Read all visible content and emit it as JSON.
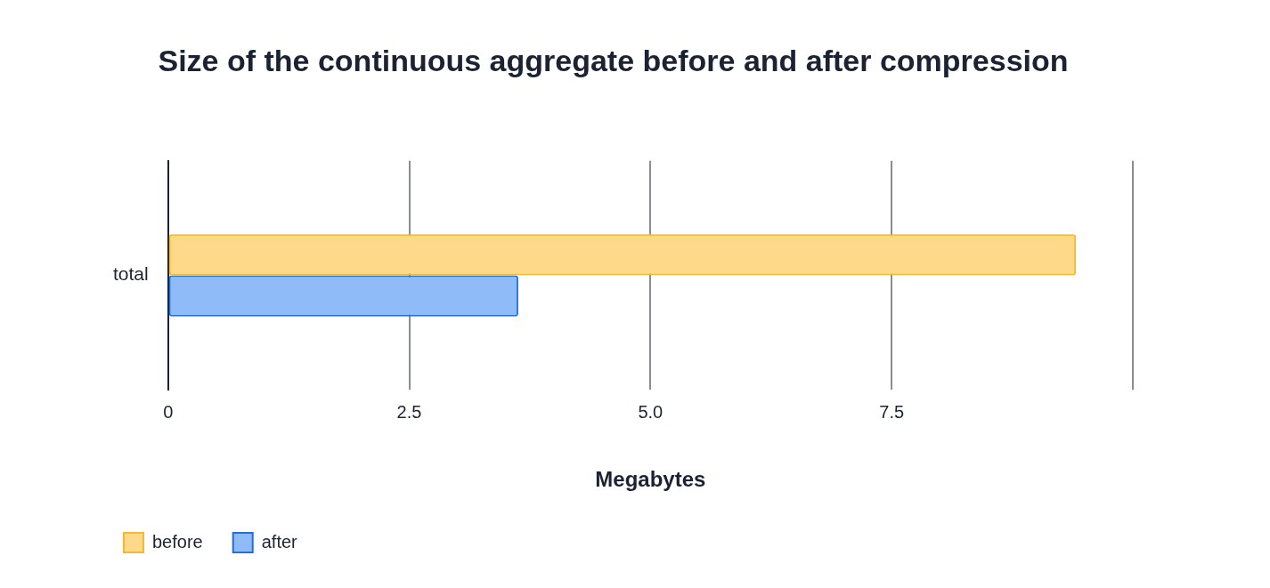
{
  "chart_data": {
    "type": "bar",
    "orientation": "horizontal",
    "title": "Size of the continuous aggregate before and after compression",
    "x_label": "Megabytes",
    "categories": [
      "total"
    ],
    "series": [
      {
        "name": "before",
        "color": "#fed98a",
        "values": [
          9.41
        ]
      },
      {
        "name": "after",
        "color": "#8fbbf9",
        "values": [
          3.63
        ]
      }
    ],
    "xlim": [
      0,
      10
    ],
    "xticks": [
      0,
      2.5,
      {
        "value": 5,
        "label": "5.0"
      },
      7.5
    ],
    "grid": true,
    "legend": "bottom-left"
  }
}
